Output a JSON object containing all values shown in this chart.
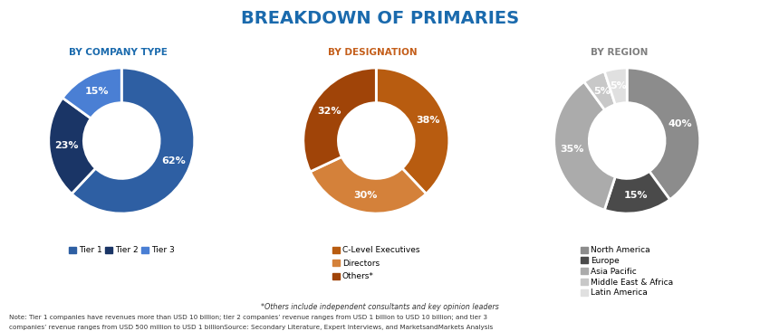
{
  "title": "BREAKDOWN OF PRIMARIES",
  "title_color": "#1a6aad",
  "subtitle1": "BY COMPANY TYPE",
  "subtitle2": "BY DESIGNATION",
  "subtitle3": "BY REGION",
  "subtitle1_color": "#1a6aad",
  "subtitle2_color": "#c45e1a",
  "subtitle3_color": "#7f7f7f",
  "pie1_values": [
    62,
    23,
    15
  ],
  "pie1_labels": [
    "62%",
    "23%",
    "15%"
  ],
  "pie1_colors": [
    "#2e5fa3",
    "#1a3566",
    "#4a7fd4"
  ],
  "pie1_legend": [
    "Tier 1",
    "Tier 2",
    "Tier 3"
  ],
  "pie1_legend_colors": [
    "#2e5fa3",
    "#1a3566",
    "#4a7fd4"
  ],
  "pie2_values": [
    38,
    30,
    32
  ],
  "pie2_labels": [
    "38%",
    "30%",
    "32%"
  ],
  "pie2_colors": [
    "#b85c10",
    "#d4813a",
    "#a04408"
  ],
  "pie2_legend": [
    "C-Level Executives",
    "Directors",
    "Others*"
  ],
  "pie2_legend_colors": [
    "#b85c10",
    "#d4813a",
    "#a04408"
  ],
  "pie3_values": [
    40,
    15,
    35,
    5,
    5
  ],
  "pie3_labels": [
    "40%",
    "15%",
    "35%",
    "5%",
    "5%"
  ],
  "pie3_colors": [
    "#8c8c8c",
    "#4a4a4a",
    "#ababab",
    "#c8c8c8",
    "#e0e0e0"
  ],
  "pie3_legend": [
    "North America",
    "Europe",
    "Asia Pacific",
    "Middle East & Africa",
    "Latin America"
  ],
  "pie3_legend_colors": [
    "#8c8c8c",
    "#4a4a4a",
    "#ababab",
    "#c8c8c8",
    "#e0e0e0"
  ],
  "note1": "*Others include independent consultants and key opinion leaders",
  "note2": "Note: Tier 1 companies have revenues more than USD 10 billion; tier 2 companies’ revenue ranges from USD 1 billion to USD 10 billion; and tier 3",
  "note3": "companies’ revenue ranges from USD 500 million to USD 1 billionSource: Secondary Literature, Expert Interviews, and MarketsandMarkets Analysis",
  "bg_color": "#ffffff"
}
